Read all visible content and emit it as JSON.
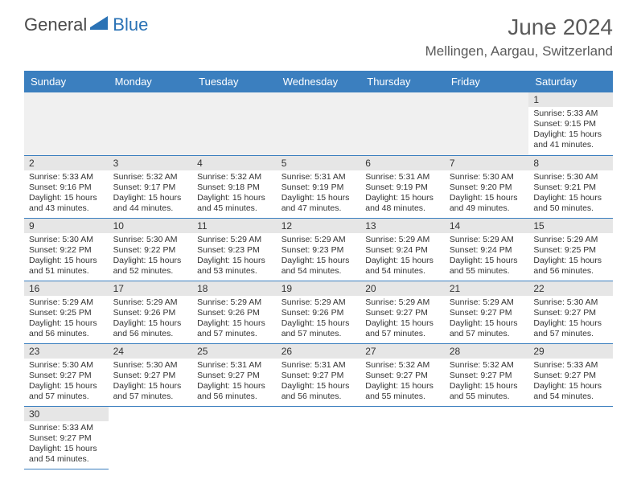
{
  "brand": {
    "part1": "General",
    "part2": "Blue"
  },
  "title": "June 2024",
  "location": "Mellingen, Aargau, Switzerland",
  "colors": {
    "header_bg": "#3b7fbf",
    "header_text": "#ffffff",
    "daynum_bg": "#e6e6e6",
    "row_border": "#3b7fbf",
    "brand_blue": "#2a72b5",
    "text": "#333333"
  },
  "weekdays": [
    "Sunday",
    "Monday",
    "Tuesday",
    "Wednesday",
    "Thursday",
    "Friday",
    "Saturday"
  ],
  "first_weekday_index": 6,
  "days": [
    {
      "n": 1,
      "sunrise": "5:33 AM",
      "sunset": "9:15 PM",
      "daylight": "15 hours and 41 minutes."
    },
    {
      "n": 2,
      "sunrise": "5:33 AM",
      "sunset": "9:16 PM",
      "daylight": "15 hours and 43 minutes."
    },
    {
      "n": 3,
      "sunrise": "5:32 AM",
      "sunset": "9:17 PM",
      "daylight": "15 hours and 44 minutes."
    },
    {
      "n": 4,
      "sunrise": "5:32 AM",
      "sunset": "9:18 PM",
      "daylight": "15 hours and 45 minutes."
    },
    {
      "n": 5,
      "sunrise": "5:31 AM",
      "sunset": "9:19 PM",
      "daylight": "15 hours and 47 minutes."
    },
    {
      "n": 6,
      "sunrise": "5:31 AM",
      "sunset": "9:19 PM",
      "daylight": "15 hours and 48 minutes."
    },
    {
      "n": 7,
      "sunrise": "5:30 AM",
      "sunset": "9:20 PM",
      "daylight": "15 hours and 49 minutes."
    },
    {
      "n": 8,
      "sunrise": "5:30 AM",
      "sunset": "9:21 PM",
      "daylight": "15 hours and 50 minutes."
    },
    {
      "n": 9,
      "sunrise": "5:30 AM",
      "sunset": "9:22 PM",
      "daylight": "15 hours and 51 minutes."
    },
    {
      "n": 10,
      "sunrise": "5:30 AM",
      "sunset": "9:22 PM",
      "daylight": "15 hours and 52 minutes."
    },
    {
      "n": 11,
      "sunrise": "5:29 AM",
      "sunset": "9:23 PM",
      "daylight": "15 hours and 53 minutes."
    },
    {
      "n": 12,
      "sunrise": "5:29 AM",
      "sunset": "9:23 PM",
      "daylight": "15 hours and 54 minutes."
    },
    {
      "n": 13,
      "sunrise": "5:29 AM",
      "sunset": "9:24 PM",
      "daylight": "15 hours and 54 minutes."
    },
    {
      "n": 14,
      "sunrise": "5:29 AM",
      "sunset": "9:24 PM",
      "daylight": "15 hours and 55 minutes."
    },
    {
      "n": 15,
      "sunrise": "5:29 AM",
      "sunset": "9:25 PM",
      "daylight": "15 hours and 56 minutes."
    },
    {
      "n": 16,
      "sunrise": "5:29 AM",
      "sunset": "9:25 PM",
      "daylight": "15 hours and 56 minutes."
    },
    {
      "n": 17,
      "sunrise": "5:29 AM",
      "sunset": "9:26 PM",
      "daylight": "15 hours and 56 minutes."
    },
    {
      "n": 18,
      "sunrise": "5:29 AM",
      "sunset": "9:26 PM",
      "daylight": "15 hours and 57 minutes."
    },
    {
      "n": 19,
      "sunrise": "5:29 AM",
      "sunset": "9:26 PM",
      "daylight": "15 hours and 57 minutes."
    },
    {
      "n": 20,
      "sunrise": "5:29 AM",
      "sunset": "9:27 PM",
      "daylight": "15 hours and 57 minutes."
    },
    {
      "n": 21,
      "sunrise": "5:29 AM",
      "sunset": "9:27 PM",
      "daylight": "15 hours and 57 minutes."
    },
    {
      "n": 22,
      "sunrise": "5:30 AM",
      "sunset": "9:27 PM",
      "daylight": "15 hours and 57 minutes."
    },
    {
      "n": 23,
      "sunrise": "5:30 AM",
      "sunset": "9:27 PM",
      "daylight": "15 hours and 57 minutes."
    },
    {
      "n": 24,
      "sunrise": "5:30 AM",
      "sunset": "9:27 PM",
      "daylight": "15 hours and 57 minutes."
    },
    {
      "n": 25,
      "sunrise": "5:31 AM",
      "sunset": "9:27 PM",
      "daylight": "15 hours and 56 minutes."
    },
    {
      "n": 26,
      "sunrise": "5:31 AM",
      "sunset": "9:27 PM",
      "daylight": "15 hours and 56 minutes."
    },
    {
      "n": 27,
      "sunrise": "5:32 AM",
      "sunset": "9:27 PM",
      "daylight": "15 hours and 55 minutes."
    },
    {
      "n": 28,
      "sunrise": "5:32 AM",
      "sunset": "9:27 PM",
      "daylight": "15 hours and 55 minutes."
    },
    {
      "n": 29,
      "sunrise": "5:33 AM",
      "sunset": "9:27 PM",
      "daylight": "15 hours and 54 minutes."
    },
    {
      "n": 30,
      "sunrise": "5:33 AM",
      "sunset": "9:27 PM",
      "daylight": "15 hours and 54 minutes."
    }
  ],
  "labels": {
    "sunrise": "Sunrise:",
    "sunset": "Sunset:",
    "daylight": "Daylight:"
  }
}
